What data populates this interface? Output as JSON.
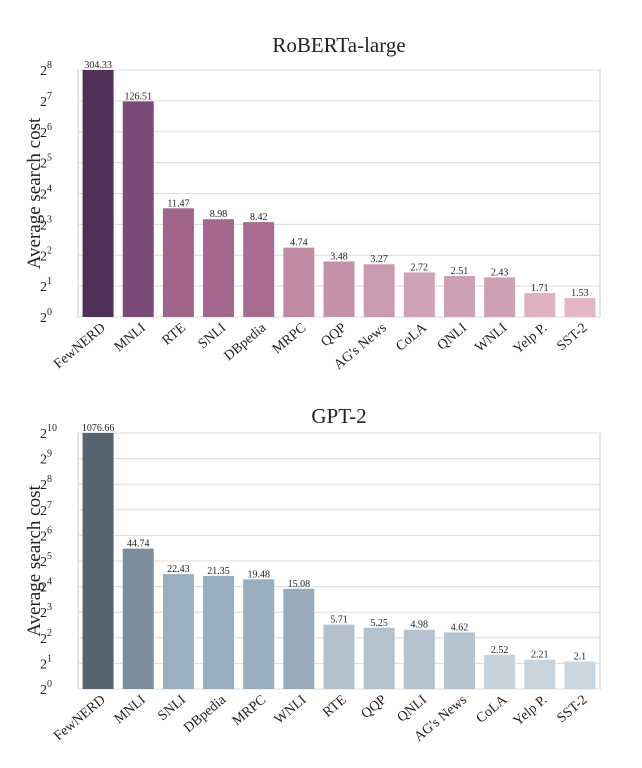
{
  "chart_data": [
    {
      "type": "bar",
      "title": "RoBERTa-large",
      "ylabel": "Average search cost",
      "xlabel": "",
      "yscale": "log2",
      "ylim": [
        1,
        256
      ],
      "yticks": [
        {
          "base": "2",
          "exp": "0"
        },
        {
          "base": "2",
          "exp": "1"
        },
        {
          "base": "2",
          "exp": "2"
        },
        {
          "base": "2",
          "exp": "3"
        },
        {
          "base": "2",
          "exp": "4"
        },
        {
          "base": "2",
          "exp": "5"
        },
        {
          "base": "2",
          "exp": "6"
        },
        {
          "base": "2",
          "exp": "7"
        },
        {
          "base": "2",
          "exp": "8"
        }
      ],
      "grid": true,
      "categories": [
        "FewNERD",
        "MNLI",
        "RTE",
        "SNLI",
        "DBpedia",
        "MRPC",
        "QQP",
        "AG's News",
        "CoLA",
        "QNLI",
        "WNLI",
        "Yelp P.",
        "SST-2"
      ],
      "values": [
        304.33,
        126.51,
        11.47,
        8.98,
        8.42,
        4.74,
        3.48,
        3.27,
        2.72,
        2.51,
        2.43,
        1.71,
        1.53
      ],
      "value_labels": [
        "304.33",
        "126.51",
        "11.47",
        "8.98",
        "8.42",
        "4.74",
        "3.48",
        "3.27",
        "2.72",
        "2.51",
        "2.43",
        "1.71",
        "1.53"
      ],
      "colors": [
        "#4f3157",
        "#7b4a78",
        "#a06489",
        "#a4678d",
        "#a86c90",
        "#c08aa3",
        "#c591a8",
        "#c99ab0",
        "#cfa2b6",
        "#cea0b5",
        "#cda0b4",
        "#deb2be",
        "#e3b8c4"
      ]
    },
    {
      "type": "bar",
      "title": "GPT-2",
      "ylabel": "Average search cost",
      "xlabel": "",
      "yscale": "log2",
      "ylim": [
        1,
        1024
      ],
      "yticks": [
        {
          "base": "2",
          "exp": "0"
        },
        {
          "base": "2",
          "exp": "1"
        },
        {
          "base": "2",
          "exp": "2"
        },
        {
          "base": "2",
          "exp": "3"
        },
        {
          "base": "2",
          "exp": "4"
        },
        {
          "base": "2",
          "exp": "5"
        },
        {
          "base": "2",
          "exp": "6"
        },
        {
          "base": "2",
          "exp": "7"
        },
        {
          "base": "2",
          "exp": "8"
        },
        {
          "base": "2",
          "exp": "9"
        },
        {
          "base": "2",
          "exp": "10"
        }
      ],
      "grid": true,
      "categories": [
        "FewNERD",
        "MNLI",
        "SNLI",
        "DBpedia",
        "MRPC",
        "WNLI",
        "RTE",
        "QQP",
        "QNLI",
        "AG's News",
        "CoLA",
        "Yelp P.",
        "SST-2"
      ],
      "values": [
        1076.66,
        44.74,
        22.43,
        21.35,
        19.48,
        15.08,
        5.71,
        5.25,
        4.98,
        4.62,
        2.52,
        2.21,
        2.1
      ],
      "value_labels": [
        "1076.66",
        "44.74",
        "22.43",
        "21.35",
        "19.48",
        "15.08",
        "5.71",
        "5.25",
        "4.98",
        "4.62",
        "2.52",
        "2.21",
        "2.1"
      ],
      "colors": [
        "#56646f",
        "#7b8e9c",
        "#9aafbf",
        "#99aebe",
        "#98adbd",
        "#98acbc",
        "#b2c1cd",
        "#b3c2ce",
        "#b4c3cf",
        "#b5c4d0",
        "#c6d2dc",
        "#c7d3dd",
        "#c9d5df"
      ]
    }
  ]
}
